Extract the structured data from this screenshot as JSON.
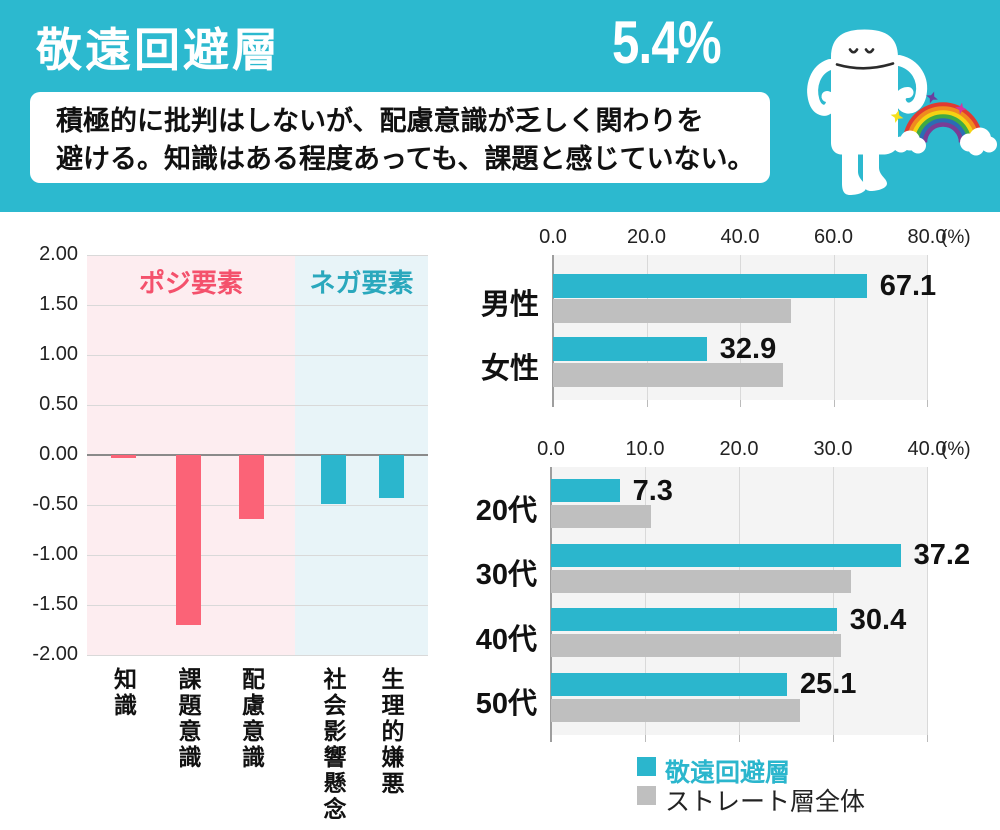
{
  "theme": {
    "header_bg": "#2cb9cf",
    "cyan": "#2bb6cd",
    "pink": "#fb6377",
    "gray": "#bfbfbf",
    "plot_bg": "#f4f4f4",
    "gridline": "#d9d9d9",
    "axis_line": "#9e9e9e",
    "zero_line": "#8a8a8a",
    "text_dark": "#111111"
  },
  "header": {
    "title": "敬遠回避層",
    "percentage": "5.4%",
    "description": [
      "積極的に批判はしないが、配慮意識が乏しく関わりを",
      "避ける。知識はある程度あっても、課題と感じていない。"
    ]
  },
  "mascot": {
    "name": "sad-white-monster-with-rainbow",
    "body_color": "#ffffff",
    "face_color": "#2b2b2b",
    "rainbow_colors": [
      "#e03a30",
      "#ef8b1f",
      "#f5d312",
      "#3faa44",
      "#2a6db4",
      "#7a3d96"
    ],
    "star_colors": [
      "#f5e01c",
      "#6a3f9e",
      "#d4359f"
    ],
    "cloud_color": "#ffffff"
  },
  "chart_data": [
    {
      "type": "bar",
      "orientation": "vertical",
      "categories": [
        "知識",
        "課題意識",
        "配慮意識",
        "社会影響懸念",
        "生理的嫌悪"
      ],
      "values": [
        -0.03,
        -1.7,
        -0.64,
        -0.49,
        -0.43
      ],
      "ylim": [
        -2.0,
        2.0
      ],
      "ytick_step": 0.5,
      "yticks": [
        "2.00",
        "1.50",
        "1.00",
        "0.50",
        "0.00",
        "-0.50",
        "-1.00",
        "-1.50",
        "-2.00"
      ],
      "grid": true,
      "zones": [
        {
          "label": "ポジ要素",
          "label_color": "#f4516c",
          "bg": "#fdedf0",
          "category_count": 3
        },
        {
          "label": "ネガ要素",
          "label_color": "#2aa8bd",
          "bg": "#e8f4f8",
          "category_count": 2
        }
      ],
      "bar_colors": [
        "#fb6377",
        "#fb6377",
        "#fb6377",
        "#2bb6cd",
        "#2bb6cd"
      ]
    },
    {
      "type": "bar",
      "orientation": "horizontal",
      "categories": [
        "男性",
        "女性"
      ],
      "series": [
        {
          "name": "敬遠回避層",
          "color": "#2bb6cd",
          "values": [
            67.1,
            32.9
          ],
          "value_labels": [
            "67.1",
            "32.9"
          ]
        },
        {
          "name": "ストレート層全体",
          "color": "#bfbfbf",
          "values": [
            50.9,
            49.1
          ]
        }
      ],
      "xlim": [
        0,
        80
      ],
      "xticks": [
        "0.0",
        "20.0",
        "40.0",
        "60.0",
        "80.0"
      ],
      "axis_unit": "(%)",
      "grid": true,
      "legend_position": "bottom"
    },
    {
      "type": "bar",
      "orientation": "horizontal",
      "categories": [
        "20代",
        "30代",
        "40代",
        "50代"
      ],
      "series": [
        {
          "name": "敬遠回避層",
          "color": "#2bb6cd",
          "values": [
            7.3,
            37.2,
            30.4,
            25.1
          ],
          "value_labels": [
            "7.3",
            "37.2",
            "30.4",
            "25.1"
          ]
        },
        {
          "name": "ストレート層全体",
          "color": "#bfbfbf",
          "values": [
            10.6,
            31.9,
            30.8,
            26.5
          ]
        }
      ],
      "xlim": [
        0,
        40
      ],
      "xticks": [
        "0.0",
        "10.0",
        "20.0",
        "30.0",
        "40.0"
      ],
      "axis_unit": "(%)",
      "grid": true,
      "legend_position": "bottom"
    }
  ],
  "legend": {
    "items": [
      {
        "label": "敬遠回避層",
        "swatch": "#2bb6cd",
        "text_color": "#2bb6cd",
        "bold": true
      },
      {
        "label": "ストレート層全体",
        "swatch": "#bfbfbf",
        "text_color": "#222222",
        "bold": false
      }
    ]
  }
}
